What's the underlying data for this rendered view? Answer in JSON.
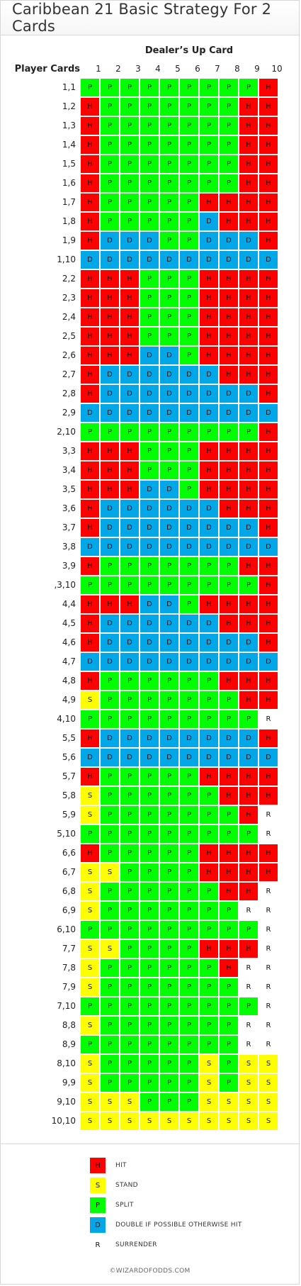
{
  "title": "Caribbean 21 Basic Strategy For 2 Cards",
  "dealer_label": "Dealer’s Up Card",
  "player_label": "Player Cards",
  "columns": [
    "1",
    "2",
    "3",
    "4",
    "5",
    "6",
    "7",
    "8",
    "9",
    "10"
  ],
  "rows": [
    {
      "label": "1,1",
      "cells": [
        "P",
        "P",
        "P",
        "P",
        "P",
        "P",
        "P",
        "P",
        "P",
        "H"
      ]
    },
    {
      "label": "1,2",
      "cells": [
        "H",
        "P",
        "P",
        "P",
        "P",
        "P",
        "P",
        "P",
        "H",
        "H"
      ]
    },
    {
      "label": "1,3",
      "cells": [
        "H",
        "P",
        "P",
        "P",
        "P",
        "P",
        "P",
        "P",
        "H",
        "H"
      ]
    },
    {
      "label": "1,4",
      "cells": [
        "H",
        "P",
        "P",
        "P",
        "P",
        "P",
        "P",
        "P",
        "H",
        "H"
      ]
    },
    {
      "label": "1,5",
      "cells": [
        "H",
        "P",
        "P",
        "P",
        "P",
        "P",
        "P",
        "P",
        "H",
        "H"
      ]
    },
    {
      "label": "1,6",
      "cells": [
        "H",
        "P",
        "P",
        "P",
        "P",
        "P",
        "P",
        "P",
        "H",
        "H"
      ]
    },
    {
      "label": "1,7",
      "cells": [
        "H",
        "P",
        "P",
        "P",
        "P",
        "P",
        "H",
        "H",
        "H",
        "H"
      ]
    },
    {
      "label": "1,8",
      "cells": [
        "H",
        "P",
        "P",
        "P",
        "P",
        "P",
        "D",
        "H",
        "H",
        "H"
      ]
    },
    {
      "label": "1,9",
      "cells": [
        "H",
        "D",
        "D",
        "D",
        "P",
        "P",
        "D",
        "D",
        "D",
        "H"
      ]
    },
    {
      "label": "1,10",
      "cells": [
        "D",
        "D",
        "D",
        "D",
        "D",
        "D",
        "D",
        "D",
        "D",
        "D"
      ]
    },
    {
      "label": "2,2",
      "cells": [
        "H",
        "H",
        "H",
        "P",
        "P",
        "P",
        "H",
        "H",
        "H",
        "H"
      ]
    },
    {
      "label": "2,3",
      "cells": [
        "H",
        "H",
        "H",
        "P",
        "P",
        "P",
        "H",
        "H",
        "H",
        "H"
      ]
    },
    {
      "label": "2,4",
      "cells": [
        "H",
        "H",
        "H",
        "P",
        "P",
        "P",
        "H",
        "H",
        "H",
        "H"
      ]
    },
    {
      "label": "2,5",
      "cells": [
        "H",
        "H",
        "H",
        "P",
        "P",
        "P",
        "H",
        "H",
        "H",
        "H"
      ]
    },
    {
      "label": "2,6",
      "cells": [
        "H",
        "H",
        "H",
        "D",
        "D",
        "P",
        "H",
        "H",
        "H",
        "H"
      ]
    },
    {
      "label": "2,7",
      "cells": [
        "H",
        "D",
        "D",
        "D",
        "D",
        "D",
        "D",
        "H",
        "H",
        "H"
      ]
    },
    {
      "label": "2,8",
      "cells": [
        "H",
        "D",
        "D",
        "D",
        "D",
        "D",
        "D",
        "D",
        "D",
        "H"
      ]
    },
    {
      "label": "2,9",
      "cells": [
        "D",
        "D",
        "D",
        "D",
        "D",
        "D",
        "D",
        "D",
        "D",
        "D"
      ]
    },
    {
      "label": "2,10",
      "cells": [
        "P",
        "P",
        "P",
        "P",
        "P",
        "P",
        "P",
        "P",
        "P",
        "H"
      ]
    },
    {
      "label": "3,3",
      "cells": [
        "H",
        "H",
        "H",
        "P",
        "P",
        "P",
        "H",
        "H",
        "H",
        "H"
      ]
    },
    {
      "label": "3,4",
      "cells": [
        "H",
        "H",
        "H",
        "P",
        "P",
        "P",
        "H",
        "H",
        "H",
        "H"
      ]
    },
    {
      "label": "3,5",
      "cells": [
        "H",
        "H",
        "H",
        "D",
        "D",
        "P",
        "H",
        "H",
        "H",
        "H"
      ]
    },
    {
      "label": "3,6",
      "cells": [
        "H",
        "D",
        "D",
        "D",
        "D",
        "D",
        "D",
        "H",
        "H",
        "H"
      ]
    },
    {
      "label": "3,7",
      "cells": [
        "H",
        "D",
        "D",
        "D",
        "D",
        "D",
        "D",
        "D",
        "D",
        "H"
      ]
    },
    {
      "label": "3,8",
      "cells": [
        "D",
        "D",
        "D",
        "D",
        "D",
        "D",
        "D",
        "D",
        "D",
        "D"
      ]
    },
    {
      "label": "3,9",
      "cells": [
        "H",
        "P",
        "P",
        "P",
        "P",
        "P",
        "P",
        "P",
        "H",
        "H"
      ]
    },
    {
      "label": ",3,10",
      "cells": [
        "P",
        "P",
        "P",
        "P",
        "P",
        "P",
        "P",
        "P",
        "P",
        "H"
      ]
    },
    {
      "label": "4,4",
      "cells": [
        "H",
        "H",
        "H",
        "D",
        "D",
        "P",
        "H",
        "H",
        "H",
        "H"
      ]
    },
    {
      "label": "4,5",
      "cells": [
        "H",
        "D",
        "D",
        "D",
        "D",
        "D",
        "D",
        "H",
        "H",
        "H"
      ]
    },
    {
      "label": "4,6",
      "cells": [
        "H",
        "D",
        "D",
        "D",
        "D",
        "D",
        "D",
        "D",
        "D",
        "H"
      ]
    },
    {
      "label": "4,7",
      "cells": [
        "D",
        "D",
        "D",
        "D",
        "D",
        "D",
        "D",
        "D",
        "D",
        "D"
      ]
    },
    {
      "label": "4,8",
      "cells": [
        "H",
        "P",
        "P",
        "P",
        "P",
        "P",
        "P",
        "H",
        "H",
        "H"
      ]
    },
    {
      "label": "4,9",
      "cells": [
        "S",
        "P",
        "P",
        "P",
        "P",
        "P",
        "P",
        "P",
        "H",
        "H"
      ]
    },
    {
      "label": "4,10",
      "cells": [
        "P",
        "P",
        "P",
        "P",
        "P",
        "P",
        "P",
        "P",
        "P",
        "R"
      ]
    },
    {
      "label": "5,5",
      "cells": [
        "H",
        "D",
        "D",
        "D",
        "D",
        "D",
        "D",
        "D",
        "D",
        "H"
      ]
    },
    {
      "label": "5,6",
      "cells": [
        "D",
        "D",
        "D",
        "D",
        "D",
        "D",
        "D",
        "D",
        "D",
        "D"
      ]
    },
    {
      "label": "5,7",
      "cells": [
        "H",
        "P",
        "P",
        "P",
        "P",
        "P",
        "H",
        "H",
        "H",
        "H"
      ]
    },
    {
      "label": "5,8",
      "cells": [
        "S",
        "P",
        "P",
        "P",
        "P",
        "P",
        "P",
        "H",
        "H",
        "H"
      ]
    },
    {
      "label": "5,9",
      "cells": [
        "S",
        "P",
        "P",
        "P",
        "P",
        "P",
        "P",
        "P",
        "H",
        "R"
      ]
    },
    {
      "label": "5,10",
      "cells": [
        "P",
        "P",
        "P",
        "P",
        "P",
        "P",
        "P",
        "P",
        "P",
        "R"
      ]
    },
    {
      "label": "6,6",
      "cells": [
        "H",
        "P",
        "P",
        "P",
        "P",
        "P",
        "H",
        "H",
        "H",
        "H"
      ]
    },
    {
      "label": "6,7",
      "cells": [
        "S",
        "S",
        "P",
        "P",
        "P",
        "P",
        "H",
        "H",
        "H",
        "H"
      ]
    },
    {
      "label": "6,8",
      "cells": [
        "S",
        "P",
        "P",
        "P",
        "P",
        "P",
        "P",
        "H",
        "H",
        "R"
      ]
    },
    {
      "label": "6,9",
      "cells": [
        "S",
        "P",
        "P",
        "P",
        "P",
        "P",
        "P",
        "P",
        "R",
        "R"
      ]
    },
    {
      "label": "6,10",
      "cells": [
        "P",
        "P",
        "P",
        "P",
        "P",
        "P",
        "P",
        "P",
        "P",
        "R"
      ]
    },
    {
      "label": "7,7",
      "cells": [
        "S",
        "S",
        "P",
        "P",
        "P",
        "P",
        "H",
        "H",
        "H",
        "R"
      ]
    },
    {
      "label": "7,8",
      "cells": [
        "S",
        "P",
        "P",
        "P",
        "P",
        "P",
        "P",
        "H",
        "R",
        "R"
      ]
    },
    {
      "label": "7,9",
      "cells": [
        "S",
        "P",
        "P",
        "P",
        "P",
        "P",
        "P",
        "P",
        "R",
        "R"
      ]
    },
    {
      "label": "7,10",
      "cells": [
        "P",
        "P",
        "P",
        "P",
        "P",
        "P",
        "P",
        "P",
        "P",
        "R"
      ]
    },
    {
      "label": "8,8",
      "cells": [
        "S",
        "P",
        "P",
        "P",
        "P",
        "P",
        "P",
        "P",
        "R",
        "R"
      ]
    },
    {
      "label": "8,9",
      "cells": [
        "P",
        "P",
        "P",
        "P",
        "P",
        "P",
        "P",
        "P",
        "R",
        "R"
      ]
    },
    {
      "label": "8,10",
      "cells": [
        "S",
        "P",
        "P",
        "P",
        "P",
        "P",
        "S",
        "P",
        "S",
        "S"
      ]
    },
    {
      "label": "9,9",
      "cells": [
        "S",
        "P",
        "P",
        "P",
        "P",
        "P",
        "S",
        "P",
        "S",
        "S"
      ]
    },
    {
      "label": "9,10",
      "cells": [
        "S",
        "S",
        "S",
        "P",
        "P",
        "P",
        "S",
        "S",
        "S",
        "S"
      ]
    },
    {
      "label": "10,10",
      "cells": [
        "S",
        "S",
        "S",
        "S",
        "S",
        "S",
        "S",
        "S",
        "S",
        "S"
      ]
    }
  ],
  "legend": [
    {
      "code": "H",
      "label": "HIT"
    },
    {
      "code": "S",
      "label": "STAND"
    },
    {
      "code": "P",
      "label": "SPLIT"
    },
    {
      "code": "D",
      "label": "DOUBLE IF POSSIBLE OTHERWISE HIT"
    },
    {
      "code": "R",
      "label": "SURRENDER"
    }
  ],
  "colors": {
    "H": "#fd0000",
    "S": "#fefe02",
    "P": "#01fe01",
    "D": "#01a7e7",
    "R": "#ffffff"
  },
  "footer": "©WIZARDOFODDS.COM"
}
